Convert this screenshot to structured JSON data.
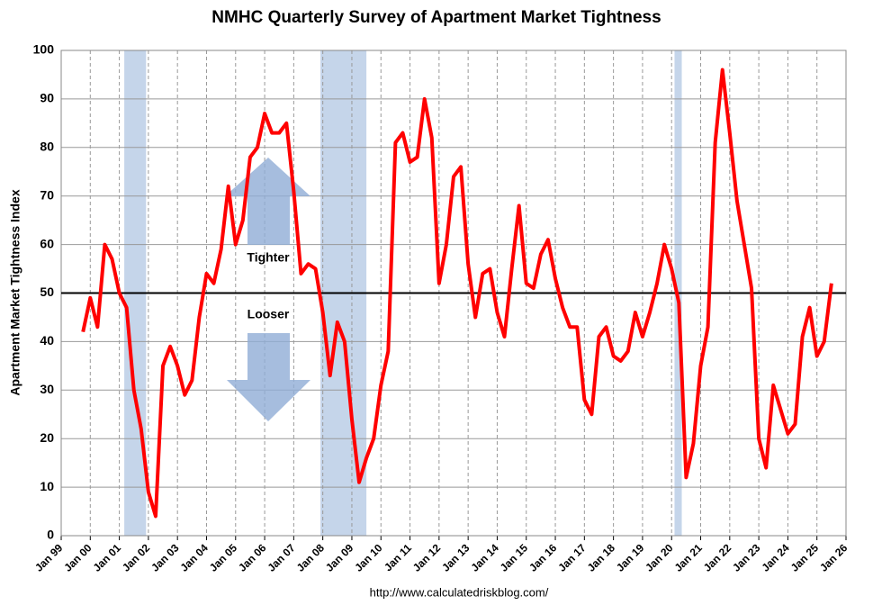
{
  "chart_data": {
    "type": "line",
    "title": "NMHC Quarterly Survey of Apartment Market Tightness",
    "y_label": "Apartment Market Tightness Index",
    "annotations": [
      "Tighter",
      "Looser"
    ],
    "source": "http://www.calculatedriskblog.com/",
    "xlim": [
      1999,
      2026
    ],
    "xticks": [
      {
        "value": 1999,
        "label": "Jan 99"
      },
      {
        "value": 2000,
        "label": "Jan 00"
      },
      {
        "value": 2001,
        "label": "Jan 01"
      },
      {
        "value": 2002,
        "label": "Jan 02"
      },
      {
        "value": 2003,
        "label": "Jan 03"
      },
      {
        "value": 2004,
        "label": "Jan 04"
      },
      {
        "value": 2005,
        "label": "Jan 05"
      },
      {
        "value": 2006,
        "label": "Jan 06"
      },
      {
        "value": 2007,
        "label": "Jan 07"
      },
      {
        "value": 2008,
        "label": "Jan 08"
      },
      {
        "value": 2009,
        "label": "Jan 09"
      },
      {
        "value": 2010,
        "label": "Jan 10"
      },
      {
        "value": 2011,
        "label": "Jan 11"
      },
      {
        "value": 2012,
        "label": "Jan 12"
      },
      {
        "value": 2013,
        "label": "Jan 13"
      },
      {
        "value": 2014,
        "label": "Jan 14"
      },
      {
        "value": 2015,
        "label": "Jan 15"
      },
      {
        "value": 2016,
        "label": "Jan 16"
      },
      {
        "value": 2017,
        "label": "Jan 17"
      },
      {
        "value": 2018,
        "label": "Jan 18"
      },
      {
        "value": 2019,
        "label": "Jan 19"
      },
      {
        "value": 2020,
        "label": "Jan 20"
      },
      {
        "value": 2021,
        "label": "Jan 21"
      },
      {
        "value": 2022,
        "label": "Jan 22"
      },
      {
        "value": 2023,
        "label": "Jan 23"
      },
      {
        "value": 2024,
        "label": "Jan 24"
      },
      {
        "value": 2025,
        "label": "Jan 25"
      },
      {
        "value": 2026,
        "label": "Jan 26"
      }
    ],
    "ylim": [
      0,
      100
    ],
    "yticks": [
      0,
      10,
      20,
      30,
      40,
      50,
      60,
      70,
      80,
      90,
      100
    ],
    "grid": true,
    "reference_line": 50,
    "shaded_periods": [
      [
        2001.17,
        2001.92
      ],
      [
        2007.92,
        2009.5
      ],
      [
        2020.1,
        2020.35
      ]
    ],
    "shade_color": "#c5d5ea",
    "x": [
      1999.75,
      2000,
      2000.25,
      2000.5,
      2000.75,
      2001,
      2001.25,
      2001.5,
      2001.75,
      2002,
      2002.25,
      2002.5,
      2002.75,
      2003,
      2003.25,
      2003.5,
      2003.75,
      2004,
      2004.25,
      2004.5,
      2004.75,
      2005,
      2005.25,
      2005.5,
      2005.75,
      2006,
      2006.25,
      2006.5,
      2006.75,
      2007,
      2007.25,
      2007.5,
      2007.75,
      2008,
      2008.25,
      2008.5,
      2008.75,
      2009,
      2009.25,
      2009.5,
      2009.75,
      2010,
      2010.25,
      2010.5,
      2010.75,
      2011,
      2011.25,
      2011.5,
      2011.75,
      2012,
      2012.25,
      2012.5,
      2012.75,
      2013,
      2013.25,
      2013.5,
      2013.75,
      2014,
      2014.25,
      2014.5,
      2014.75,
      2015,
      2015.25,
      2015.5,
      2015.75,
      2016,
      2016.25,
      2016.5,
      2016.75,
      2017,
      2017.25,
      2017.5,
      2017.75,
      2018,
      2018.25,
      2018.5,
      2018.75,
      2019,
      2019.25,
      2019.5,
      2019.75,
      2020,
      2020.25,
      2020.5,
      2020.75,
      2021,
      2021.25,
      2021.5,
      2021.75,
      2022,
      2022.25,
      2022.5,
      2022.75,
      2023,
      2023.25,
      2023.5,
      2023.75,
      2024,
      2024.25,
      2024.5,
      2024.75,
      2025,
      2025.25,
      2025.5
    ],
    "series": [
      {
        "color": "#ff0000",
        "values": [
          42,
          49,
          43,
          60,
          57,
          50,
          47,
          30,
          22,
          9,
          4,
          35,
          39,
          35,
          29,
          32,
          45,
          54,
          52,
          59,
          72,
          60,
          65,
          78,
          80,
          87,
          83,
          83,
          85,
          71,
          54,
          56,
          55,
          46,
          33,
          44,
          40,
          24,
          11,
          16,
          20,
          31,
          38,
          81,
          83,
          77,
          78,
          90,
          82,
          52,
          60,
          74,
          76,
          56,
          45,
          54,
          55,
          46,
          41,
          55,
          68,
          52,
          51,
          58,
          61,
          53,
          47,
          43,
          43,
          28,
          25,
          41,
          43,
          37,
          36,
          38,
          46,
          41,
          46,
          52,
          60,
          55,
          48,
          12,
          19,
          35,
          43,
          81,
          96,
          83,
          69,
          60,
          51,
          20,
          14,
          31,
          26,
          21,
          23,
          41,
          47,
          37,
          40,
          52
        ]
      }
    ]
  }
}
